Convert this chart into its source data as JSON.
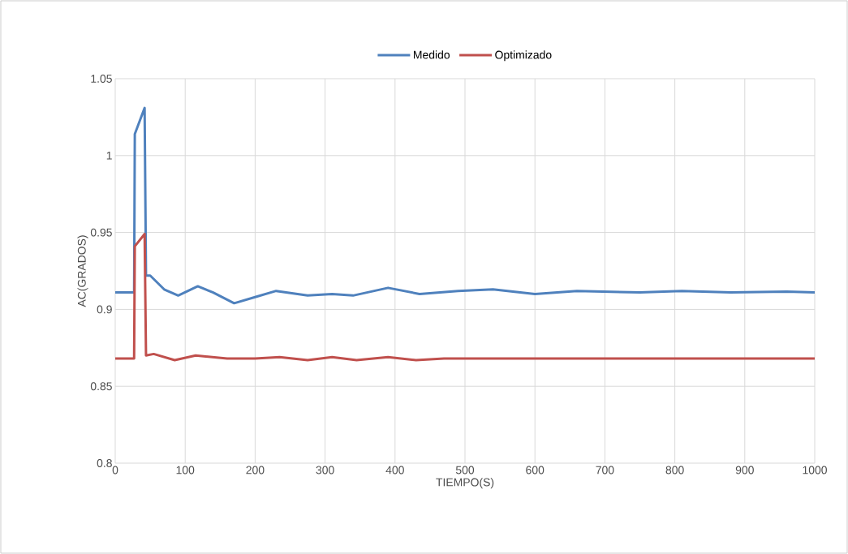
{
  "chart_data": {
    "type": "line",
    "xlabel": "TIEMPO(S)",
    "ylabel": "AC(GRADOS)",
    "xlim": [
      0,
      1000
    ],
    "xticks": [
      0,
      100,
      200,
      300,
      400,
      500,
      600,
      700,
      800,
      900,
      1000
    ],
    "ylim": [
      0.8,
      1.05
    ],
    "yticks": [
      0.8,
      0.85,
      0.9,
      0.95,
      1,
      1.05
    ],
    "grid": true,
    "legend": "top",
    "marker": "none",
    "line_style": "solid",
    "series": [
      {
        "name": "Medido",
        "color": "#4f81bd",
        "x": [
          0,
          27,
          28,
          42,
          44,
          50,
          70,
          90,
          118,
          140,
          170,
          200,
          230,
          275,
          310,
          340,
          390,
          435,
          490,
          540,
          600,
          660,
          750,
          810,
          880,
          960,
          1000
        ],
        "values": [
          0.911,
          0.911,
          1.014,
          1.031,
          0.922,
          0.922,
          0.913,
          0.909,
          0.915,
          0.911,
          0.904,
          0.908,
          0.912,
          0.909,
          0.91,
          0.909,
          0.914,
          0.91,
          0.912,
          0.913,
          0.91,
          0.912,
          0.911,
          0.912,
          0.911,
          0.9115,
          0.911
        ]
      },
      {
        "name": "Optimizado",
        "color": "#c0504d",
        "x": [
          0,
          27,
          28,
          42,
          44,
          55,
          85,
          115,
          160,
          200,
          235,
          275,
          310,
          345,
          390,
          430,
          470,
          1000
        ],
        "values": [
          0.868,
          0.868,
          0.941,
          0.949,
          0.87,
          0.871,
          0.867,
          0.87,
          0.868,
          0.868,
          0.869,
          0.867,
          0.869,
          0.867,
          0.869,
          0.867,
          0.868,
          0.868
        ]
      }
    ]
  }
}
